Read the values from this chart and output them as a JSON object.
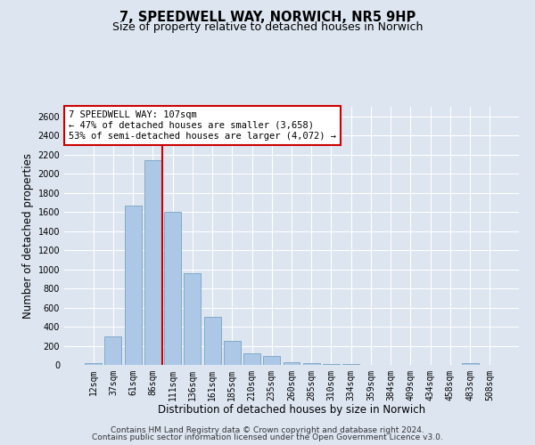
{
  "title": "7, SPEEDWELL WAY, NORWICH, NR5 9HP",
  "subtitle": "Size of property relative to detached houses in Norwich",
  "xlabel": "Distribution of detached houses by size in Norwich",
  "ylabel": "Number of detached properties",
  "bar_labels": [
    "12sqm",
    "37sqm",
    "61sqm",
    "86sqm",
    "111sqm",
    "136sqm",
    "161sqm",
    "185sqm",
    "210sqm",
    "235sqm",
    "260sqm",
    "285sqm",
    "310sqm",
    "334sqm",
    "359sqm",
    "384sqm",
    "409sqm",
    "434sqm",
    "458sqm",
    "483sqm",
    "508sqm"
  ],
  "bar_values": [
    20,
    295,
    1670,
    2140,
    1600,
    960,
    505,
    250,
    120,
    95,
    30,
    15,
    8,
    5,
    3,
    2,
    2,
    1,
    1,
    20,
    1
  ],
  "bar_color": "#adc8e6",
  "bar_edge_color": "#6699bb",
  "vline_color": "#cc0000",
  "annotation_title": "7 SPEEDWELL WAY: 107sqm",
  "annotation_line1": "← 47% of detached houses are smaller (3,658)",
  "annotation_line2": "53% of semi-detached houses are larger (4,072) →",
  "annotation_box_color": "#ffffff",
  "annotation_box_edge": "#cc0000",
  "ylim": [
    0,
    2700
  ],
  "yticks": [
    0,
    200,
    400,
    600,
    800,
    1000,
    1200,
    1400,
    1600,
    1800,
    2000,
    2200,
    2400,
    2600
  ],
  "footer1": "Contains HM Land Registry data © Crown copyright and database right 2024.",
  "footer2": "Contains public sector information licensed under the Open Government Licence v3.0.",
  "background_color": "#dde5f0",
  "plot_background": "#dde5f0",
  "title_fontsize": 10.5,
  "subtitle_fontsize": 9,
  "axis_label_fontsize": 8.5,
  "tick_fontsize": 7,
  "annotation_fontsize": 7.5,
  "footer_fontsize": 6.5
}
